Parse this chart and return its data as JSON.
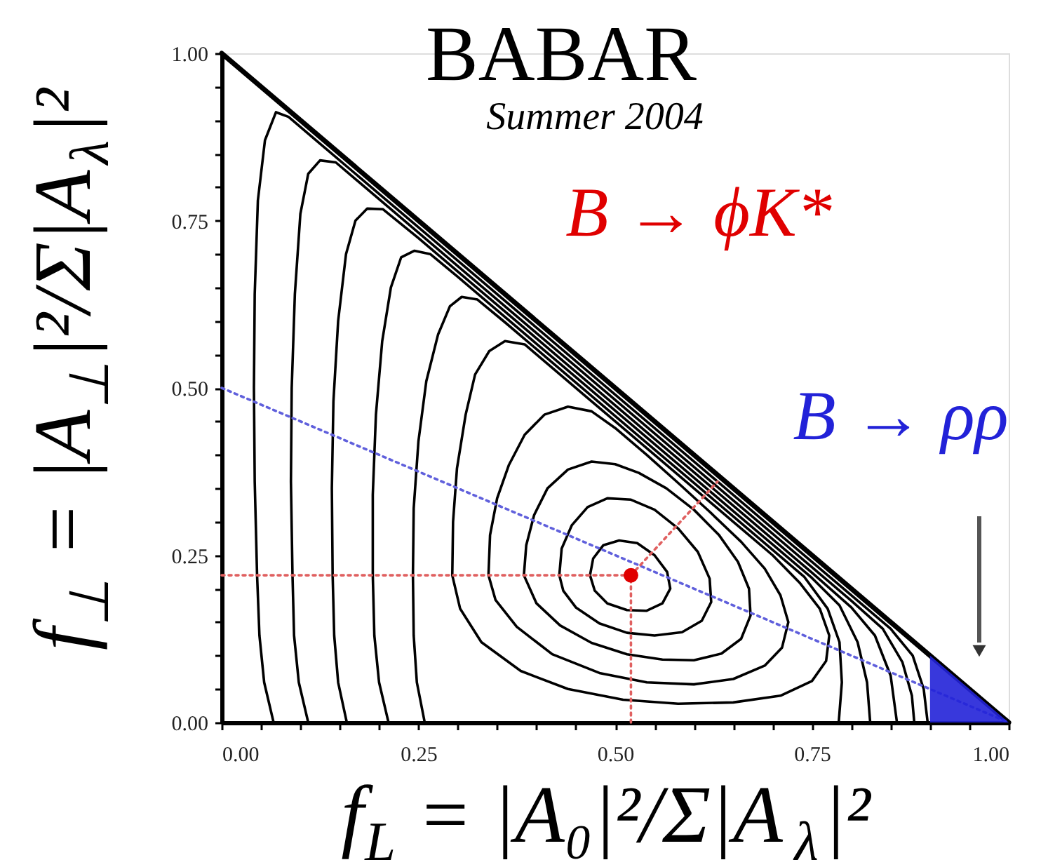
{
  "chart_data": {
    "type": "line",
    "title": "BABAR",
    "subtitle": "Summer 2004",
    "xlabel": "f$_{L}$ = |A₀|²/Σ|A$_{λ}$|²",
    "ylabel": "f$_{⊥}$ = |A$_{⊥}$|²/Σ|A$_{λ}$|²",
    "xlim": [
      0,
      1
    ],
    "ylim": [
      0,
      1
    ],
    "grid": false,
    "xticks": [
      {
        "value": 0,
        "label": "0.00"
      },
      {
        "value": 0.05,
        "label": null
      },
      {
        "value": 0.1,
        "label": null
      },
      {
        "value": 0.15,
        "label": null
      },
      {
        "value": 0.2,
        "label": null
      },
      {
        "value": 0.25,
        "label": "0.25"
      },
      {
        "value": 0.3,
        "label": null
      },
      {
        "value": 0.35,
        "label": null
      },
      {
        "value": 0.4,
        "label": null
      },
      {
        "value": 0.45,
        "label": null
      },
      {
        "value": 0.5,
        "label": "0.50"
      },
      {
        "value": 0.55,
        "label": null
      },
      {
        "value": 0.6,
        "label": null
      },
      {
        "value": 0.65,
        "label": null
      },
      {
        "value": 0.7,
        "label": null
      },
      {
        "value": 0.75,
        "label": "0.75"
      },
      {
        "value": 0.8,
        "label": null
      },
      {
        "value": 0.85,
        "label": null
      },
      {
        "value": 0.9,
        "label": null
      },
      {
        "value": 0.95,
        "label": null
      },
      {
        "value": 1,
        "label": "1.00"
      }
    ],
    "yticks": [
      {
        "value": 0,
        "label": "0.00"
      },
      {
        "value": 0.05,
        "label": null
      },
      {
        "value": 0.1,
        "label": null
      },
      {
        "value": 0.15,
        "label": null
      },
      {
        "value": 0.2,
        "label": null
      },
      {
        "value": 0.25,
        "label": "0.25"
      },
      {
        "value": 0.3,
        "label": null
      },
      {
        "value": 0.35,
        "label": null
      },
      {
        "value": 0.4,
        "label": null
      },
      {
        "value": 0.45,
        "label": null
      },
      {
        "value": 0.5,
        "label": "0.50"
      },
      {
        "value": 0.55,
        "label": null
      },
      {
        "value": 0.6,
        "label": null
      },
      {
        "value": 0.65,
        "label": null
      },
      {
        "value": 0.7,
        "label": null
      },
      {
        "value": 0.75,
        "label": "0.75"
      },
      {
        "value": 0.8,
        "label": null
      },
      {
        "value": 0.85,
        "label": null
      },
      {
        "value": 0.9,
        "label": null
      },
      {
        "value": 0.95,
        "label": null
      },
      {
        "value": 1,
        "label": "1.00"
      }
    ],
    "series": [
      {
        "color": "#000000",
        "x": [
          0,
          1
        ],
        "values": [
          1,
          0
        ]
      },
      {
        "color": "#000000",
        "x": [
          0.468,
          0.472,
          0.485,
          0.505,
          0.528,
          0.55,
          0.566,
          0.57,
          0.56,
          0.54,
          0.515,
          0.49,
          0.474,
          0.468,
          0.472
        ],
        "values": [
          0.22,
          0.245,
          0.265,
          0.272,
          0.268,
          0.25,
          0.225,
          0.2,
          0.178,
          0.167,
          0.168,
          0.178,
          0.197,
          0.22,
          0.245
        ]
      },
      {
        "color": "#000000",
        "x": [
          0.429,
          0.432,
          0.445,
          0.465,
          0.49,
          0.52,
          0.55,
          0.58,
          0.605,
          0.62,
          0.622,
          0.61,
          0.585,
          0.55,
          0.515,
          0.48,
          0.45,
          0.434,
          0.429,
          0.432
        ],
        "values": [
          0.22,
          0.26,
          0.295,
          0.322,
          0.335,
          0.333,
          0.318,
          0.29,
          0.255,
          0.215,
          0.18,
          0.152,
          0.135,
          0.13,
          0.134,
          0.148,
          0.172,
          0.197,
          0.22,
          0.26
        ]
      },
      {
        "color": "#000000",
        "x": [
          0.384,
          0.387,
          0.397,
          0.414,
          0.44,
          0.47,
          0.5,
          0.53,
          0.565,
          0.6,
          0.632,
          0.656,
          0.67,
          0.672,
          0.66,
          0.635,
          0.6,
          0.56,
          0.515,
          0.47,
          0.43,
          0.4,
          0.384,
          0.387
        ],
        "values": [
          0.22,
          0.265,
          0.31,
          0.35,
          0.378,
          0.39,
          0.386,
          0.373,
          0.35,
          0.318,
          0.28,
          0.24,
          0.2,
          0.16,
          0.125,
          0.103,
          0.093,
          0.094,
          0.102,
          0.119,
          0.145,
          0.178,
          0.22,
          0.265
        ]
      },
      {
        "color": "#000000",
        "x": [
          0.339,
          0.341,
          0.35,
          0.365,
          0.385,
          0.41,
          0.44,
          0.47,
          0.5,
          0.54,
          0.58,
          0.62,
          0.66,
          0.69,
          0.71,
          0.72,
          0.712,
          0.69,
          0.65,
          0.6,
          0.54,
          0.48,
          0.42,
          0.375,
          0.348,
          0.339,
          0.341
        ],
        "values": [
          0.22,
          0.28,
          0.335,
          0.385,
          0.43,
          0.46,
          0.472,
          0.465,
          0.44,
          0.4,
          0.358,
          0.315,
          0.27,
          0.23,
          0.19,
          0.15,
          0.112,
          0.085,
          0.065,
          0.057,
          0.06,
          0.074,
          0.102,
          0.143,
          0.183,
          0.22,
          0.28
        ]
      },
      {
        "color": "#000000",
        "x": [
          0.293,
          0.294,
          0.299,
          0.31,
          0.322,
          0.34,
          0.36,
          0.385,
          0.42,
          0.46,
          0.5,
          0.55,
          0.6,
          0.65,
          0.7,
          0.735,
          0.76,
          0.772,
          0.768,
          0.75,
          0.71,
          0.65,
          0.58,
          0.51,
          0.44,
          0.38,
          0.33,
          0.303,
          0.293,
          0.294
        ],
        "values": [
          0.22,
          0.3,
          0.38,
          0.46,
          0.52,
          0.555,
          0.57,
          0.565,
          0.53,
          0.49,
          0.45,
          0.4,
          0.35,
          0.3,
          0.25,
          0.208,
          0.17,
          0.13,
          0.092,
          0.062,
          0.04,
          0.03,
          0.028,
          0.034,
          0.05,
          0.077,
          0.12,
          0.17,
          0.22,
          0.3
        ]
      },
      {
        "color": "#000000",
        "x": [
          0.258,
          0.248,
          0.244,
          0.243,
          0.244,
          0.25,
          0.26,
          0.275,
          0.29,
          0.305,
          0.325,
          0.36,
          0.4,
          0.45,
          0.5,
          0.55,
          0.6,
          0.65,
          0.7,
          0.74,
          0.77,
          0.785,
          0.788,
          0.784
        ],
        "values": [
          0,
          0.06,
          0.13,
          0.22,
          0.32,
          0.42,
          0.51,
          0.58,
          0.622,
          0.636,
          0.632,
          0.598,
          0.558,
          0.508,
          0.458,
          0.408,
          0.358,
          0.308,
          0.258,
          0.218,
          0.17,
          0.12,
          0.06,
          0
        ]
      },
      {
        "color": "#000000",
        "x": [
          0.212,
          0.2,
          0.194,
          0.192,
          0.192,
          0.196,
          0.204,
          0.215,
          0.228,
          0.245,
          0.265,
          0.3,
          0.35,
          0.4,
          0.45,
          0.5,
          0.55,
          0.6,
          0.65,
          0.7,
          0.75,
          0.785,
          0.808,
          0.82,
          0.824
        ],
        "values": [
          0,
          0.06,
          0.13,
          0.22,
          0.34,
          0.46,
          0.57,
          0.65,
          0.695,
          0.705,
          0.7,
          0.666,
          0.616,
          0.566,
          0.516,
          0.466,
          0.416,
          0.366,
          0.316,
          0.266,
          0.216,
          0.175,
          0.12,
          0.06,
          0
        ]
      },
      {
        "color": "#000000",
        "x": [
          0.159,
          0.148,
          0.143,
          0.141,
          0.14,
          0.142,
          0.148,
          0.158,
          0.17,
          0.185,
          0.205,
          0.25,
          0.3,
          0.35,
          0.4,
          0.45,
          0.5,
          0.55,
          0.6,
          0.65,
          0.7,
          0.75,
          0.8,
          0.83,
          0.85,
          0.858
        ],
        "values": [
          0,
          0.06,
          0.13,
          0.22,
          0.35,
          0.48,
          0.6,
          0.7,
          0.75,
          0.768,
          0.767,
          0.724,
          0.674,
          0.624,
          0.574,
          0.524,
          0.474,
          0.424,
          0.374,
          0.324,
          0.274,
          0.224,
          0.172,
          0.13,
          0.07,
          0
        ]
      },
      {
        "color": "#000000",
        "x": [
          0.11,
          0.098,
          0.092,
          0.09,
          0.088,
          0.089,
          0.093,
          0.1,
          0.11,
          0.125,
          0.145,
          0.2,
          0.25,
          0.3,
          0.35,
          0.4,
          0.45,
          0.5,
          0.55,
          0.6,
          0.65,
          0.7,
          0.75,
          0.8,
          0.84,
          0.865,
          0.877,
          0.88
        ],
        "values": [
          0,
          0.06,
          0.13,
          0.22,
          0.36,
          0.5,
          0.64,
          0.76,
          0.82,
          0.84,
          0.837,
          0.782,
          0.732,
          0.682,
          0.632,
          0.582,
          0.532,
          0.482,
          0.432,
          0.382,
          0.332,
          0.282,
          0.232,
          0.182,
          0.14,
          0.09,
          0.04,
          0
        ]
      },
      {
        "color": "#000000",
        "x": [
          0.066,
          0.054,
          0.048,
          0.045,
          0.042,
          0.041,
          0.042,
          0.046,
          0.055,
          0.069,
          0.085,
          0.12,
          0.2,
          0.3,
          0.4,
          0.5,
          0.6,
          0.7,
          0.8,
          0.85,
          0.878,
          0.892,
          0.897
        ],
        "values": [
          0,
          0.06,
          0.13,
          0.22,
          0.36,
          0.5,
          0.64,
          0.78,
          0.87,
          0.912,
          0.905,
          0.87,
          0.79,
          0.69,
          0.59,
          0.49,
          0.39,
          0.29,
          0.19,
          0.14,
          0.1,
          0.05,
          0
        ]
      },
      {
        "color": "#6060dc",
        "line_style": "dotted",
        "x": [
          0,
          1
        ],
        "values": [
          0.5,
          0
        ]
      },
      {
        "color": "#e06060",
        "line_style": "dotted",
        "x": [
          0,
          0.52
        ],
        "values": [
          0.22,
          0.22
        ]
      },
      {
        "color": "#e06060",
        "line_style": "dotted",
        "x": [
          0.52,
          0.52
        ],
        "values": [
          0,
          0.22
        ]
      },
      {
        "color": "#e06060",
        "line_style": "dotted",
        "x": [
          0.52,
          0.63
        ],
        "values": [
          0.22,
          0.36
        ]
      },
      {
        "name": "B → ϕK*",
        "type": "scatter",
        "marker": "circle",
        "color": "#e00000",
        "x": [
          0.52
        ],
        "values": [
          0.22
        ]
      },
      {
        "name": "B → ρρ",
        "type": "area",
        "color": "#2222d8",
        "x": [
          0.9,
          1
        ],
        "values": [
          0.1,
          0
        ]
      }
    ]
  }
}
